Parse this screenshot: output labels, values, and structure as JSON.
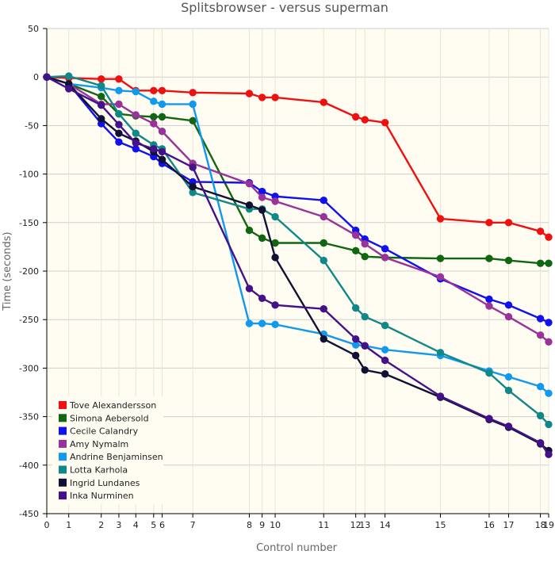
{
  "chart_data": {
    "type": "line",
    "title": "Splitsbrowser - versus superman",
    "xlabel": "Control number",
    "ylabel": "Time (seconds)",
    "ylim": [
      -450,
      50
    ],
    "yticks": [
      50,
      0,
      -50,
      -100,
      -150,
      -200,
      -250,
      -300,
      -350,
      -400,
      -450
    ],
    "xlim": [
      0,
      19
    ],
    "xticks": [
      0,
      1,
      2,
      3,
      4,
      5,
      6,
      7,
      8,
      9,
      10,
      11,
      12,
      13,
      14,
      15,
      16,
      17,
      18,
      19
    ],
    "xtick_labels": [
      "0",
      "1",
      "2",
      "3",
      "4",
      "5",
      "6",
      "7",
      "8",
      "9",
      "10",
      "11",
      "12",
      "13",
      "14",
      "15",
      "16",
      "17",
      "18",
      "19"
    ],
    "x_positions": [
      0,
      0.96,
      2.38,
      3.15,
      3.89,
      4.67,
      5.04,
      6.38,
      8.85,
      9.41,
      9.98,
      12.1,
      13.5,
      13.9,
      14.78,
      17.2,
      19.33,
      20.18,
      21.57,
      21.93
    ],
    "grid": true,
    "legend_position": "bottom-left",
    "background": "#fffcf2",
    "series": [
      {
        "name": "Tove Alexandersson",
        "color": "#ee1111",
        "values": [
          0,
          -1,
          -2,
          -2,
          -14,
          -14,
          -14,
          -16,
          -17,
          -21,
          -21,
          -26,
          -41,
          -44,
          -47,
          -146,
          -150,
          -150,
          -159,
          -165
        ]
      },
      {
        "name": "Simona Aebersold",
        "color": "#116611",
        "values": [
          0,
          -7,
          -20,
          -38,
          -40,
          -41,
          -41,
          -45,
          -158,
          -166,
          -171,
          -171,
          -179,
          -185,
          -186,
          -187,
          -187,
          -189,
          -192,
          -192
        ]
      },
      {
        "name": "Cecile Calandry",
        "color": "#1111ee",
        "values": [
          0,
          -7,
          -48,
          -67,
          -74,
          -82,
          -89,
          -108,
          -109,
          -118,
          -123,
          -127,
          -158,
          -167,
          -177,
          -208,
          -229,
          -235,
          -249,
          -253
        ]
      },
      {
        "name": "Amy Nymalm",
        "color": "#993399",
        "values": [
          0,
          -7,
          -28,
          -28,
          -39,
          -48,
          -56,
          -89,
          -110,
          -124,
          -128,
          -144,
          -163,
          -172,
          -186,
          -206,
          -236,
          -247,
          -266,
          -273
        ]
      },
      {
        "name": "Andrine Benjaminsen",
        "color": "#1199ee",
        "values": [
          0,
          -7,
          -11,
          -14,
          -15,
          -25,
          -28,
          -28,
          -254,
          -254,
          -255,
          -265,
          -276,
          -277,
          -281,
          -287,
          -303,
          -309,
          -319,
          -326
        ]
      },
      {
        "name": "Lotta Karhola",
        "color": "#118888",
        "values": [
          0,
          1,
          -9,
          -38,
          -58,
          -70,
          -74,
          -119,
          -136,
          -136,
          -144,
          -189,
          -238,
          -247,
          -256,
          -284,
          -305,
          -323,
          -349,
          -358
        ]
      },
      {
        "name": "Ingrid Lundanes",
        "color": "#111133",
        "values": [
          0,
          -7,
          -43,
          -58,
          -66,
          -77,
          -85,
          -113,
          -132,
          -137,
          -186,
          -270,
          -287,
          -302,
          -306,
          -330,
          -353,
          -361,
          -378,
          -385
        ]
      },
      {
        "name": "Inka Nurminen",
        "color": "#441188",
        "values": [
          0,
          -12,
          -29,
          -49,
          -68,
          -74,
          -77,
          -93,
          -218,
          -228,
          -235,
          -239,
          -270,
          -277,
          -292,
          -329,
          -352,
          -360,
          -377,
          -389
        ]
      }
    ]
  }
}
